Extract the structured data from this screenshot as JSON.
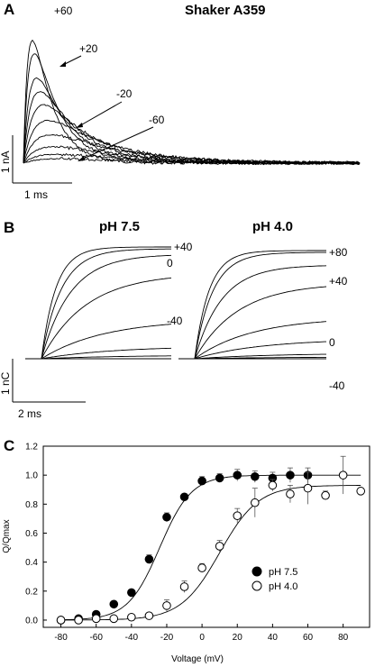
{
  "panel_a": {
    "letter": "A",
    "title": "Shaker A359",
    "trace_labels": [
      "+60",
      "+20",
      "-20",
      "-60"
    ],
    "scale_y": "1 nA",
    "scale_x": "1 ms"
  },
  "panel_b": {
    "letter": "B",
    "left": {
      "title": "pH 7.5",
      "labels": [
        "+40",
        "0",
        "-40"
      ]
    },
    "right": {
      "title": "pH 4.0",
      "labels": [
        "+80",
        "+40",
        "0",
        "-40"
      ]
    },
    "scale_y": "1 nC",
    "scale_x": "2 ms"
  },
  "panel_c": {
    "letter": "C"
  },
  "chart_data": {
    "type": "scatter",
    "xlabel": "Voltage (mV)",
    "ylabel": "Q/Qmax",
    "xlim": [
      -90,
      95
    ],
    "ylim": [
      -0.05,
      1.2
    ],
    "xticks": [
      -80,
      -60,
      -40,
      -20,
      0,
      20,
      40,
      60,
      80
    ],
    "yticks": [
      0.0,
      0.2,
      0.4,
      0.6,
      0.8,
      1.0,
      1.2
    ],
    "xtick_labels": [
      "-80",
      "-60",
      "-40",
      "-20",
      "0",
      "20",
      "40",
      "60",
      "80"
    ],
    "ytick_labels": [
      "0.0",
      "0.2",
      "0.4",
      "0.6",
      "0.8",
      "1.0",
      "1.2"
    ],
    "legend_position": "center-right",
    "series": [
      {
        "name": "pH 7.5",
        "marker": "filled-circle",
        "x": [
          -80,
          -70,
          -60,
          -50,
          -40,
          -30,
          -20,
          -10,
          0,
          10,
          20,
          30,
          40,
          50,
          60
        ],
        "y": [
          0.0,
          0.01,
          0.04,
          0.11,
          0.19,
          0.42,
          0.71,
          0.85,
          0.96,
          0.98,
          1.0,
          0.99,
          0.98,
          1.0,
          1.0
        ],
        "err": [
          0.01,
          0.01,
          0.01,
          0.02,
          0.02,
          0.03,
          0.03,
          0.02,
          0.03,
          0.03,
          0.04,
          0.04,
          0.04,
          0.05,
          0.05
        ],
        "fit": {
          "v_half": -24,
          "slope": 9,
          "max": 1.0
        }
      },
      {
        "name": "pH 4.0",
        "marker": "open-circle",
        "x": [
          -80,
          -70,
          -60,
          -50,
          -40,
          -30,
          -20,
          -10,
          0,
          10,
          20,
          30,
          40,
          50,
          60,
          70,
          80,
          90
        ],
        "y": [
          0.0,
          0.0,
          0.01,
          0.01,
          0.02,
          0.03,
          0.1,
          0.23,
          0.36,
          0.51,
          0.72,
          0.81,
          0.93,
          0.87,
          0.91,
          0.86,
          1.0,
          0.89
        ],
        "err": [
          0.01,
          0.01,
          0.01,
          0.01,
          0.01,
          0.01,
          0.04,
          0.04,
          0.03,
          0.04,
          0.05,
          0.1,
          0.04,
          0.06,
          0.11,
          0.03,
          0.13,
          0.02
        ],
        "fit": {
          "v_half": 10,
          "slope": 11,
          "max": 0.93
        }
      }
    ]
  }
}
